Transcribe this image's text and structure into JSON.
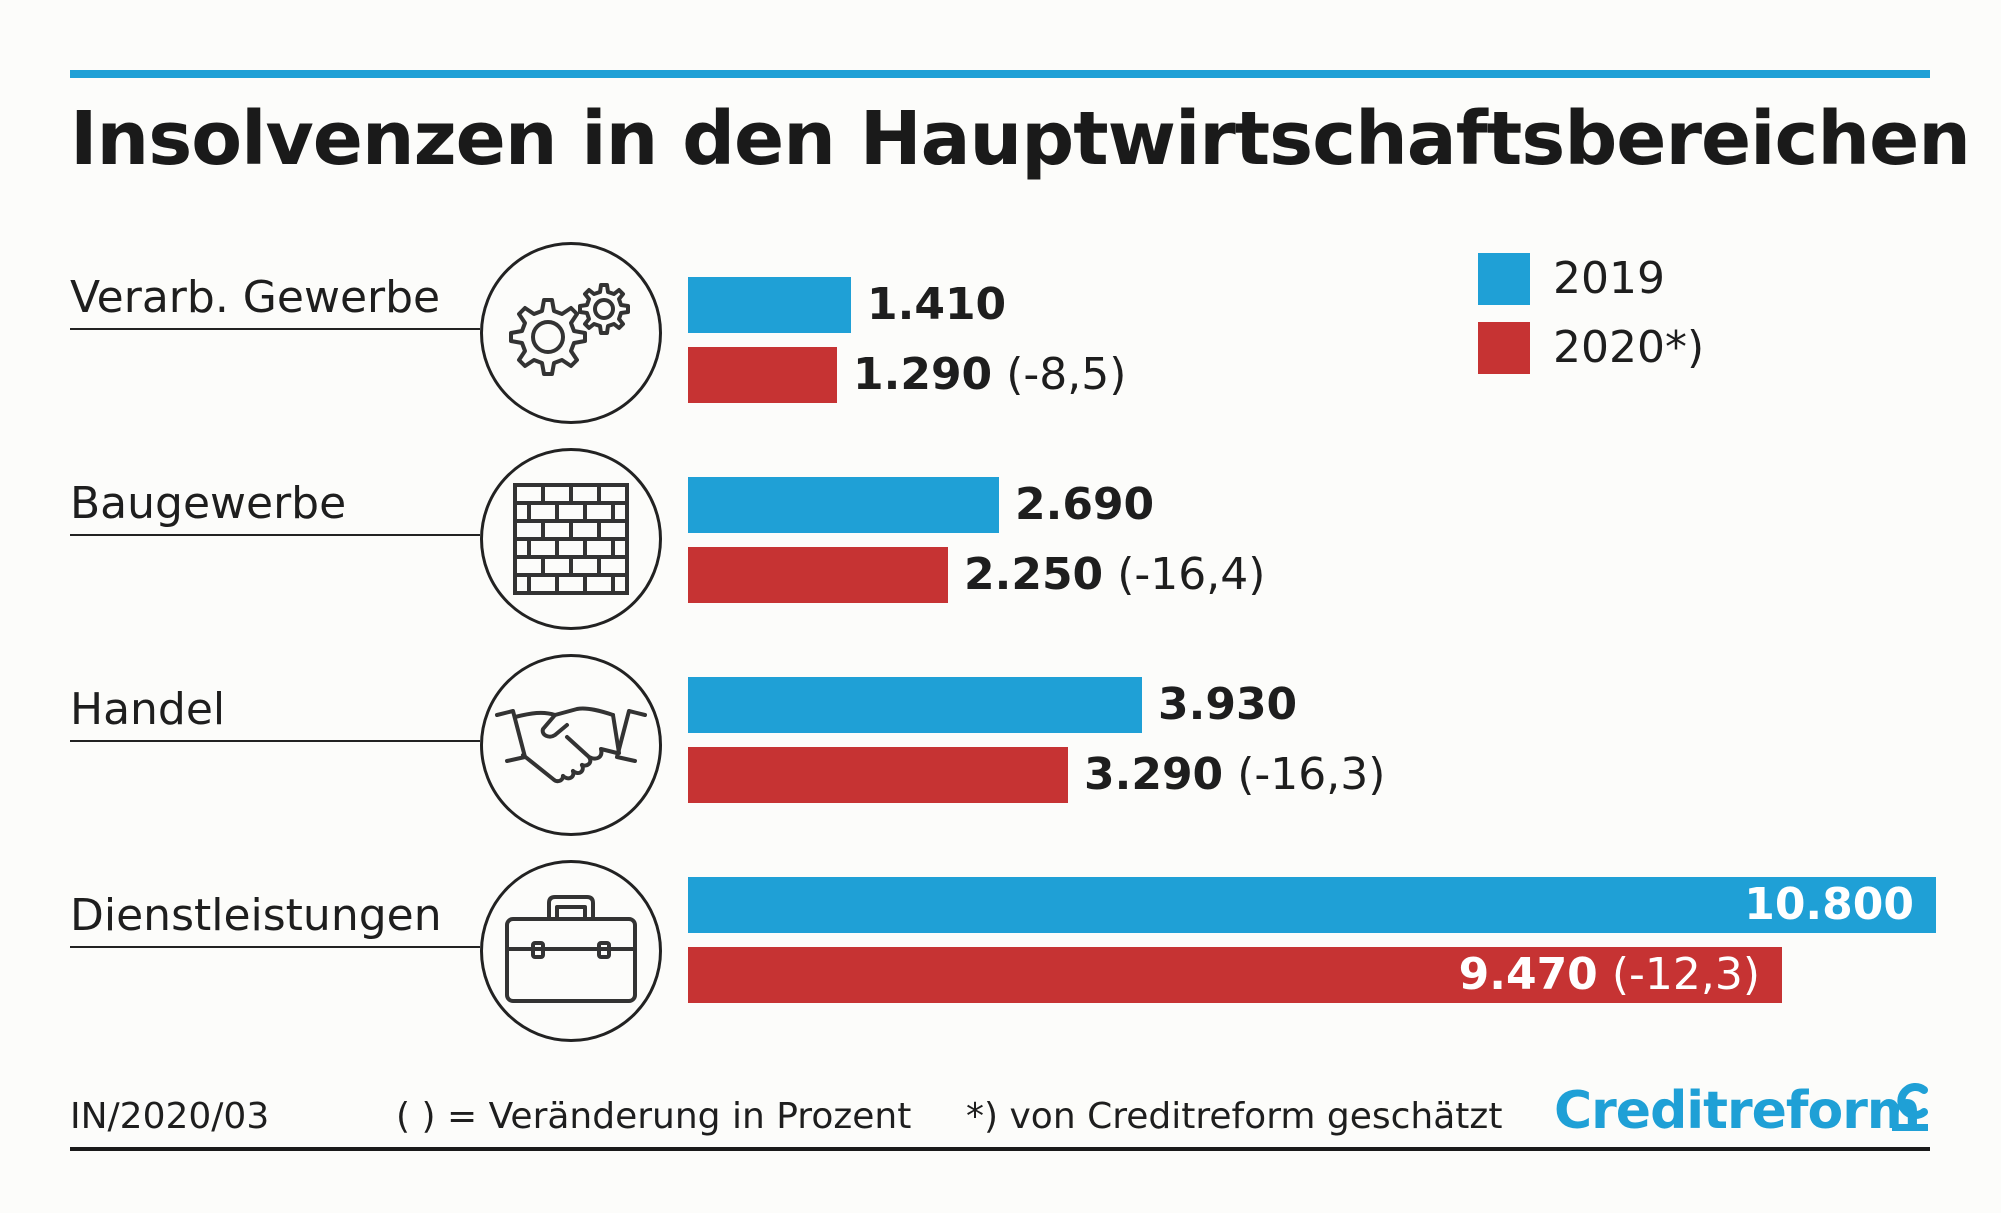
{
  "title": "Insolvenzen in den Hauptwirtschaftsbereichen",
  "legend": [
    {
      "label": "2019",
      "color": "#1fa0d6"
    },
    {
      "label": "2020*)",
      "color": "#c63333"
    }
  ],
  "categories": [
    {
      "name": "Verarb. Gewerbe",
      "icon": "gears-icon",
      "v2019_label": "1.410",
      "v2020_label": "1.290",
      "change_label": "(-8,5)"
    },
    {
      "name": "Baugewerbe",
      "icon": "brick-wall-icon",
      "v2019_label": "2.690",
      "v2020_label": "2.250",
      "change_label": "(-16,4)"
    },
    {
      "name": "Handel",
      "icon": "handshake-icon",
      "v2019_label": "3.930",
      "v2020_label": "3.290",
      "change_label": "(-16,3)"
    },
    {
      "name": "Dienstleistungen",
      "icon": "briefcase-icon",
      "v2019_label": "10.800",
      "v2020_label": "9.470",
      "change_label": "(-12,3)"
    }
  ],
  "chart_data": {
    "type": "bar",
    "orientation": "horizontal",
    "title": "Insolvenzen in den Hauptwirtschaftsbereichen",
    "categories": [
      "Verarb. Gewerbe",
      "Baugewerbe",
      "Handel",
      "Dienstleistungen"
    ],
    "series": [
      {
        "name": "2019",
        "values": [
          1410,
          2690,
          3930,
          10800
        ],
        "color": "#1fa0d6"
      },
      {
        "name": "2020*)",
        "values": [
          1290,
          2250,
          3290,
          9470
        ],
        "color": "#c63333"
      }
    ],
    "change_percent": [
      -8.5,
      -16.4,
      -16.3,
      -12.3
    ],
    "xlim": [
      0,
      10800
    ],
    "grid": false,
    "legend_position": "top-right"
  },
  "footer": {
    "code": "IN/2020/03",
    "note_change": "( ) = Veränderung in Prozent",
    "note_estimate": "*) von Creditreform geschätzt",
    "logo_text": "Creditreform"
  }
}
